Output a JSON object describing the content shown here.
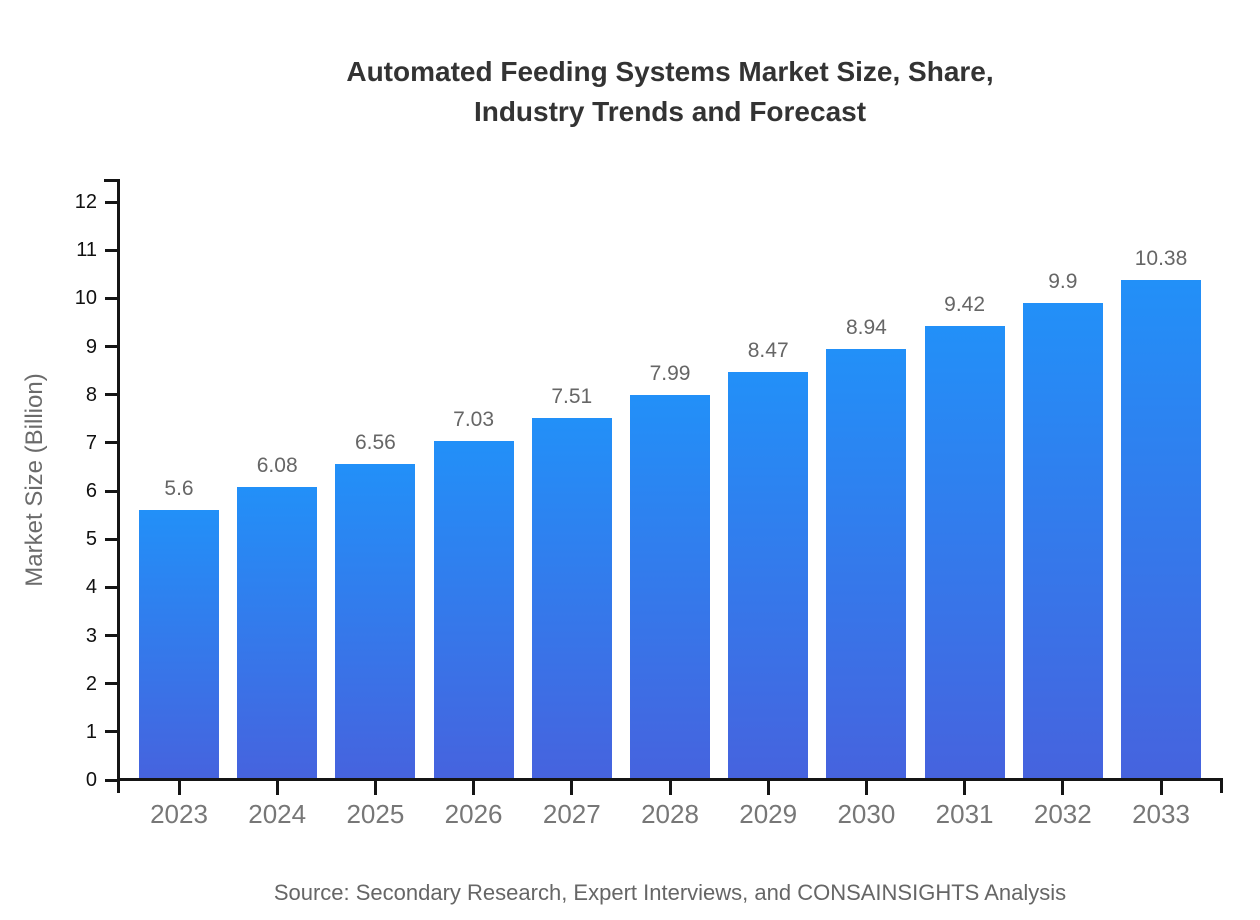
{
  "title": {
    "line1": "Automated Feeding Systems Market Size, Share,",
    "line2": "Industry Trends and Forecast"
  },
  "source": {
    "text": "Source: Secondary Research, Expert Interviews, and CONSAINSIGHTS Analysis"
  },
  "chart_data": {
    "type": "bar",
    "title": "Automated Feeding Systems Market Size, Share, Industry Trends and Forecast",
    "categories": [
      "2023",
      "2024",
      "2025",
      "2026",
      "2027",
      "2028",
      "2029",
      "2030",
      "2031",
      "2032",
      "2033"
    ],
    "values": [
      5.6,
      6.08,
      6.56,
      7.03,
      7.51,
      7.99,
      8.47,
      8.94,
      9.42,
      9.9,
      10.38
    ],
    "value_labels": [
      "5.6",
      "6.08",
      "6.56",
      "7.03",
      "7.51",
      "7.99",
      "8.47",
      "8.94",
      "9.42",
      "9.9",
      "10.38"
    ],
    "xlabel": "",
    "ylabel": "Market Size (Billion)",
    "ylim": [
      0,
      12
    ],
    "yticks": [
      0,
      1,
      2,
      3,
      4,
      5,
      6,
      7,
      8,
      9,
      10,
      11,
      12
    ],
    "grid": false,
    "legend_position": "none",
    "colors": {
      "bar_gradient_top": "#2290f8",
      "bar_gradient_bottom": "#4663de",
      "axis": "#151515",
      "y_tick_label": "#111111",
      "x_tick_label": "#777777",
      "value_label": "#666666",
      "title": "#333333",
      "source": "#666666",
      "background": "#ffffff"
    }
  }
}
